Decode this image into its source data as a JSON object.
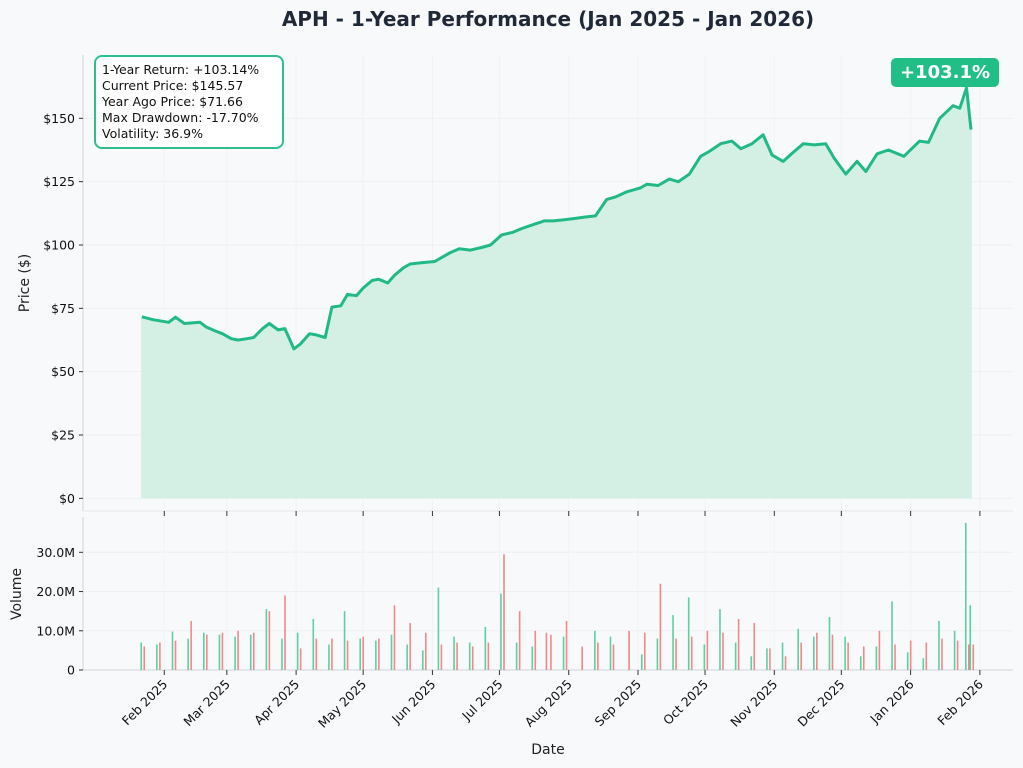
{
  "title": "APH - 1-Year Performance (Jan 2025 - Jan 2026)",
  "badge": "+103.1%",
  "stats": [
    "1-Year Return: +103.14%",
    "Current Price: $145.57",
    "Year Ago Price: $71.66",
    "Max Drawdown: -17.70%",
    "Volatility: 36.9%"
  ],
  "colors": {
    "line": "#21ba87",
    "fill": "#d4efe4",
    "up": "#5ecfa2",
    "down": "#ef8a8a",
    "badge": "#21be88"
  },
  "chart_data": [
    {
      "type": "area",
      "title": "APH - 1-Year Performance (Jan 2025 - Jan 2026)",
      "xlabel": "",
      "ylabel": "Price ($)",
      "ylim": [
        -5,
        175
      ],
      "yticks": [
        0,
        25,
        50,
        75,
        100,
        125,
        150
      ],
      "ytick_labels": [
        "$0",
        "$25",
        "$50",
        "$75",
        "$100",
        "$125",
        "$150"
      ],
      "grid": true,
      "x": [
        "2025-01-22",
        "2025-01-27",
        "2025-02-03",
        "2025-02-06",
        "2025-02-10",
        "2025-02-17",
        "2025-02-20",
        "2025-02-24",
        "2025-02-27",
        "2025-03-03",
        "2025-03-06",
        "2025-03-10",
        "2025-03-13",
        "2025-03-17",
        "2025-03-20",
        "2025-03-24",
        "2025-03-27",
        "2025-03-31",
        "2025-04-03",
        "2025-04-07",
        "2025-04-10",
        "2025-04-14",
        "2025-04-17",
        "2025-04-21",
        "2025-04-24",
        "2025-04-28",
        "2025-05-01",
        "2025-05-05",
        "2025-05-08",
        "2025-05-12",
        "2025-05-15",
        "2025-05-19",
        "2025-05-22",
        "2025-05-27",
        "2025-06-02",
        "2025-06-05",
        "2025-06-09",
        "2025-06-13",
        "2025-06-18",
        "2025-06-23",
        "2025-06-27",
        "2025-07-02",
        "2025-07-07",
        "2025-07-11",
        "2025-07-16",
        "2025-07-21",
        "2025-07-25",
        "2025-07-30",
        "2025-08-04",
        "2025-08-08",
        "2025-08-13",
        "2025-08-18",
        "2025-08-22",
        "2025-08-27",
        "2025-09-02",
        "2025-09-05",
        "2025-09-10",
        "2025-09-15",
        "2025-09-19",
        "2025-09-24",
        "2025-09-29",
        "2025-10-03",
        "2025-10-08",
        "2025-10-13",
        "2025-10-17",
        "2025-10-22",
        "2025-10-27",
        "2025-10-31",
        "2025-11-05",
        "2025-11-10",
        "2025-11-14",
        "2025-11-19",
        "2025-11-24",
        "2025-11-28",
        "2025-12-03",
        "2025-12-08",
        "2025-12-12",
        "2025-12-17",
        "2025-12-22",
        "2025-12-29",
        "2026-01-05",
        "2026-01-09",
        "2026-01-14",
        "2026-01-20",
        "2026-01-23",
        "2026-01-26",
        "2026-01-28"
      ],
      "series": [
        {
          "values": [
            71.66,
            70.5,
            69.5,
            71.5,
            69,
            69.5,
            67.5,
            66,
            65,
            63,
            62.5,
            63,
            63.5,
            67,
            69,
            66.5,
            67,
            59,
            61,
            65,
            64.5,
            63.5,
            75.5,
            76,
            80.5,
            80,
            83,
            86,
            86.5,
            85,
            88,
            91,
            92.5,
            93,
            93.5,
            95,
            97,
            98.5,
            98,
            99,
            100,
            104,
            105,
            106.5,
            108,
            109.5,
            109.5,
            110,
            110.5,
            111,
            111.5,
            118,
            119,
            121,
            122.5,
            124,
            123.5,
            126,
            125,
            128,
            135,
            137,
            140,
            141,
            138,
            140,
            143.5,
            135.5,
            133,
            137,
            140,
            139.5,
            140,
            134,
            128,
            133,
            129,
            136,
            137.5,
            135,
            141,
            140.5,
            150,
            155,
            154,
            162,
            145.57
          ]
        }
      ]
    },
    {
      "type": "bar",
      "xlabel": "Date",
      "ylabel": "Volume",
      "ylim": [
        0,
        39000000
      ],
      "yticks": [
        0,
        10000000,
        20000000,
        30000000
      ],
      "ytick_labels": [
        "0",
        "10.0M",
        "20.0M",
        "30.0M"
      ],
      "grid": true,
      "xticks": [
        "2025-02-01",
        "2025-03-01",
        "2025-04-01",
        "2025-05-01",
        "2025-06-01",
        "2025-07-01",
        "2025-08-01",
        "2025-09-01",
        "2025-10-01",
        "2025-11-01",
        "2025-12-01",
        "2026-01-01",
        "2026-02-01"
      ],
      "xtick_labels": [
        "Feb 2025",
        "Mar 2025",
        "Apr 2025",
        "May 2025",
        "Jun 2025",
        "Jul 2025",
        "Aug 2025",
        "Sep 2025",
        "Oct 2025",
        "Nov 2025",
        "Dec 2025",
        "Jan 2026",
        "Feb 2026"
      ],
      "x": [
        "2025-01-22",
        "2025-01-29",
        "2025-02-05",
        "2025-02-12",
        "2025-02-19",
        "2025-02-26",
        "2025-03-05",
        "2025-03-12",
        "2025-03-19",
        "2025-03-26",
        "2025-04-02",
        "2025-04-09",
        "2025-04-16",
        "2025-04-23",
        "2025-04-30",
        "2025-05-07",
        "2025-05-14",
        "2025-05-21",
        "2025-05-28",
        "2025-06-04",
        "2025-06-11",
        "2025-06-18",
        "2025-06-25",
        "2025-07-02",
        "2025-07-09",
        "2025-07-16",
        "2025-07-21",
        "2025-07-23",
        "2025-07-30",
        "2025-08-06",
        "2025-08-13",
        "2025-08-20",
        "2025-08-27",
        "2025-09-03",
        "2025-09-10",
        "2025-09-17",
        "2025-09-24",
        "2025-10-01",
        "2025-10-08",
        "2025-10-15",
        "2025-10-22",
        "2025-10-29",
        "2025-11-05",
        "2025-11-12",
        "2025-11-19",
        "2025-11-26",
        "2025-12-03",
        "2025-12-10",
        "2025-12-17",
        "2025-12-24",
        "2025-12-31",
        "2026-01-07",
        "2026-01-14",
        "2026-01-21",
        "2026-01-26",
        "2026-01-28"
      ],
      "series": [
        {
          "name": "up",
          "values": [
            7000000,
            6500000,
            9800000,
            8000000,
            9500000,
            9000000,
            8500000,
            9000000,
            15500000,
            8000000,
            9500000,
            13000000,
            6500000,
            15000000,
            8000000,
            7500000,
            9000000,
            6500000,
            5000000,
            21000000,
            8500000,
            7000000,
            11000000,
            19500000,
            7000000,
            6000000,
            0,
            0,
            8500000,
            0,
            10000000,
            8500000,
            0,
            4000000,
            8000000,
            14000000,
            18500000,
            6500000,
            15500000,
            7000000,
            3500000,
            5500000,
            7000000,
            10500000,
            8500000,
            13500000,
            8500000,
            3500000,
            6000000,
            17500000,
            4500000,
            3000000,
            12500000,
            10000000,
            37500000,
            16500000
          ]
        },
        {
          "name": "down",
          "values": [
            6000000,
            7000000,
            7500000,
            12500000,
            9000000,
            9500000,
            10000000,
            9500000,
            15000000,
            19000000,
            5500000,
            8000000,
            8000000,
            7500000,
            8500000,
            8000000,
            16500000,
            12000000,
            9500000,
            6500000,
            7000000,
            6000000,
            7000000,
            29500000,
            15000000,
            10000000,
            9500000,
            9000000,
            12500000,
            6000000,
            7000000,
            6500000,
            10000000,
            9500000,
            22000000,
            8000000,
            8500000,
            10000000,
            9500000,
            13000000,
            12000000,
            5500000,
            3500000,
            7000000,
            9500000,
            9000000,
            7000000,
            6000000,
            10000000,
            6500000,
            7500000,
            7000000,
            8000000,
            7500000,
            6500000,
            6500000
          ]
        }
      ]
    }
  ]
}
